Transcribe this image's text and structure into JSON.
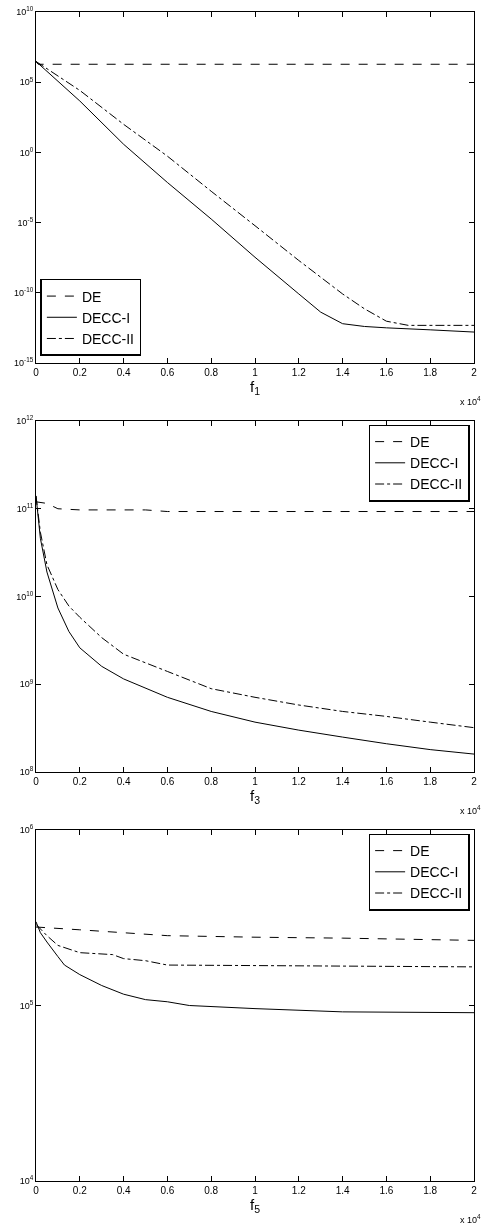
{
  "chart_data": [
    {
      "type": "line",
      "xlabel": "f$_{1}$",
      "log": "y",
      "grid": false,
      "legend": "bottom left",
      "marker": "none",
      "annotations": [
        "x 10$^{4}$"
      ],
      "xlim": [
        0,
        2
      ],
      "xticks": [
        0,
        0.2,
        0.4,
        0.6,
        0.8,
        1,
        1.2,
        1.4,
        1.6,
        1.8,
        2
      ],
      "ylim": [
        1e-15,
        10000000000.0
      ],
      "yticks": [
        {
          "value": 1e-15,
          "label": "10$^{-15}$"
        },
        {
          "value": 1e-10,
          "label": "10$^{-10}$"
        },
        {
          "value": 1e-05,
          "label": "10$^{-5}$"
        },
        {
          "value": 1,
          "label": "10$^{0}$"
        },
        {
          "value": 100000.0,
          "label": "10$^{5}$"
        },
        {
          "value": 10000000000.0,
          "label": "10$^{10}$"
        }
      ],
      "series": [
        {
          "name": "DE",
          "color": "#000000",
          "line_style": "dashed",
          "x": [
            0,
            0.01,
            2
          ],
          "values": [
            3000000.0,
            1900000.0,
            1900000.0
          ]
        },
        {
          "name": "DECC-I",
          "color": "#000000",
          "line_style": "solid",
          "x": [
            0,
            0.2,
            0.4,
            0.6,
            0.8,
            1,
            1.2,
            1.3,
            1.4,
            1.5,
            1.6,
            1.8,
            2
          ],
          "values": [
            3000000.0,
            4600.0,
            3.8,
            0.0072,
            1.8e-05,
            3.4e-08,
            8.3e-11,
            4.2e-12,
            6.3e-13,
            4e-13,
            3.2e-13,
            2.3e-13,
            1.6e-13
          ]
        },
        {
          "name": "DECC-II",
          "color": "#000000",
          "line_style": "dashdot",
          "x": [
            0,
            0.2,
            0.4,
            0.6,
            0.8,
            1,
            1.2,
            1.4,
            1.5,
            1.6,
            1.7,
            2
          ],
          "values": [
            3000000.0,
            26000.0,
            100,
            0.54,
            0.0017,
            6e-06,
            2e-08,
            8.3e-11,
            7.2e-12,
            9.5e-13,
            4.8e-13,
            4.8e-13
          ]
        }
      ]
    },
    {
      "type": "line",
      "xlabel": "f$_{3}$",
      "log": "y",
      "grid": false,
      "legend": "top right",
      "marker": "none",
      "annotations": [
        "x 10$^{4}$"
      ],
      "xlim": [
        0,
        2
      ],
      "xticks": [
        0,
        0.2,
        0.4,
        0.6,
        0.8,
        1,
        1.2,
        1.4,
        1.6,
        1.8,
        2
      ],
      "ylim": [
        100000000.0,
        1000000000000.0
      ],
      "yticks": [
        {
          "value": 100000000.0,
          "label": "10$^{8}$"
        },
        {
          "value": 1000000000.0,
          "label": "10$^{9}$"
        },
        {
          "value": 10000000000.0,
          "label": "10$^{10}$"
        },
        {
          "value": 100000000000.0,
          "label": "10$^{11}$"
        },
        {
          "value": 1000000000000.0,
          "label": "10$^{12}$"
        }
      ],
      "series": [
        {
          "name": "DE",
          "color": "#000000",
          "line_style": "dashed",
          "x": [
            0,
            0.05,
            0.1,
            0.2,
            0.5,
            0.6,
            2
          ],
          "values": [
            120000000000.0,
            115000000000.0,
            100000000000.0,
            97000000000.0,
            97000000000.0,
            93000000000.0,
            93000000000.0
          ]
        },
        {
          "name": "DECC-I",
          "color": "#000000",
          "line_style": "solid",
          "x": [
            0,
            0.02,
            0.05,
            0.1,
            0.15,
            0.2,
            0.3,
            0.4,
            0.6,
            0.8,
            1,
            1.2,
            1.4,
            1.6,
            1.8,
            2
          ],
          "values": [
            140000000000.0,
            46000000000.0,
            19000000000.0,
            7400000000.0,
            4000000000.0,
            2600000000.0,
            1600000000.0,
            1150000000.0,
            710000000.0,
            490000000.0,
            370000000.0,
            300000000.0,
            250000000.0,
            210000000.0,
            180000000.0,
            160000000.0
          ]
        },
        {
          "name": "DECC-II",
          "color": "#000000",
          "line_style": "dashdot",
          "x": [
            0,
            0.02,
            0.05,
            0.1,
            0.15,
            0.2,
            0.3,
            0.4,
            0.6,
            0.8,
            1,
            1.2,
            1.4,
            1.6,
            1.8,
            2
          ],
          "values": [
            140000000000.0,
            54000000000.0,
            23000000000.0,
            12000000000.0,
            7800000000.0,
            5800000000.0,
            3400000000.0,
            2200000000.0,
            1400000000.0,
            890000000.0,
            710000000.0,
            580000000.0,
            490000000.0,
            430000000.0,
            370000000.0,
            320000000.0
          ]
        }
      ]
    },
    {
      "type": "line",
      "xlabel": "f$_{5}$",
      "log": "y",
      "grid": false,
      "legend": "top right",
      "marker": "none",
      "annotations": [
        "x 10$^{4}$"
      ],
      "xlim": [
        0,
        2
      ],
      "xticks": [
        0,
        0.2,
        0.4,
        0.6,
        0.8,
        1,
        1.2,
        1.4,
        1.6,
        1.8,
        2
      ],
      "ylim": [
        10000.0,
        1000000.0
      ],
      "yticks": [
        {
          "value": 10000.0,
          "label": "10$^{4}$"
        },
        {
          "value": 100000.0,
          "label": "10$^{5}$"
        },
        {
          "value": 1000000.0,
          "label": "10$^{6}$"
        }
      ],
      "series": [
        {
          "name": "DE",
          "color": "#000000",
          "line_style": "dashed",
          "x": [
            0,
            0.2,
            0.6,
            1,
            1.4,
            2
          ],
          "values": [
            280000.0,
            270000.0,
            250000.0,
            245000.0,
            242000.0,
            235000.0
          ]
        },
        {
          "name": "DECC-I",
          "color": "#000000",
          "line_style": "solid",
          "x": [
            0,
            0.02,
            0.05,
            0.1,
            0.13,
            0.2,
            0.3,
            0.4,
            0.5,
            0.6,
            0.7,
            1,
            1.4,
            2
          ],
          "values": [
            300000.0,
            260000.0,
            230000.0,
            190000.0,
            170000.0,
            150000.0,
            130000.0,
            116000.0,
            108000.0,
            105000.0,
            100000.0,
            96000.0,
            92000.0,
            91000.0
          ]
        },
        {
          "name": "DECC-II",
          "color": "#000000",
          "line_style": "dashdot",
          "x": [
            0,
            0.05,
            0.1,
            0.2,
            0.35,
            0.4,
            0.5,
            0.6,
            2
          ],
          "values": [
            290000.0,
            250000.0,
            220000.0,
            200000.0,
            195000.0,
            185000.0,
            180000.0,
            170000.0,
            166000.0
          ]
        }
      ]
    }
  ]
}
